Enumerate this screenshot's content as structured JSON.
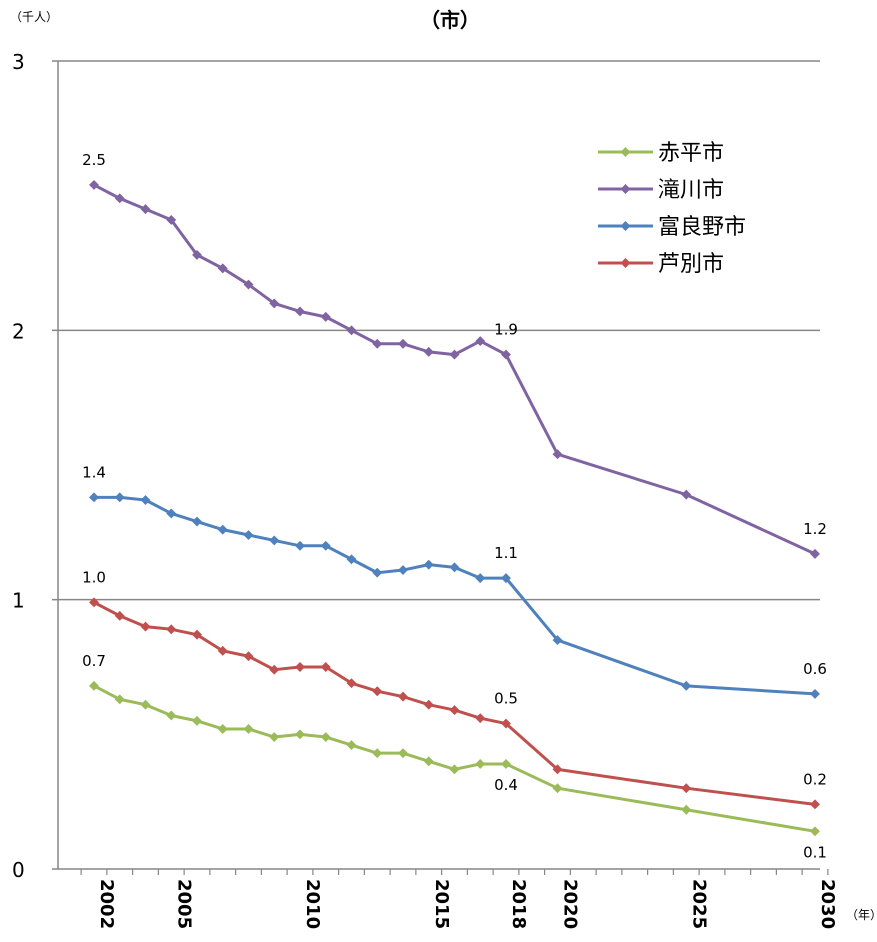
{
  "chart_data": {
    "type": "line",
    "title": "（市）",
    "ylabel": "（千人）",
    "xlabel": "（年）",
    "ylim": [
      0,
      3
    ],
    "yticks": [
      "0",
      "1",
      "2",
      "3"
    ],
    "x": [
      2002,
      2003,
      2004,
      2005,
      2006,
      2007,
      2008,
      2009,
      2010,
      2011,
      2012,
      2013,
      2014,
      2015,
      2016,
      2017,
      2018,
      2020,
      2025,
      2030
    ],
    "xtick_labels": [
      "2002",
      "2005",
      "2010",
      "2015",
      "2018",
      "2020",
      "2025",
      "2030"
    ],
    "grid": true,
    "legend_position": "top-right",
    "series": [
      {
        "name": "赤平市",
        "color": "#9bbb59",
        "values": [
          0.68,
          0.63,
          0.61,
          0.57,
          0.55,
          0.52,
          0.52,
          0.49,
          0.5,
          0.49,
          0.46,
          0.43,
          0.43,
          0.4,
          0.37,
          0.39,
          0.39,
          0.3,
          0.22,
          0.14
        ],
        "labels": [
          {
            "i": 0,
            "text": "0.7",
            "pos": "above"
          },
          {
            "i": 16,
            "text": "0.4",
            "pos": "below"
          },
          {
            "i": 19,
            "text": "0.1",
            "pos": "below"
          }
        ]
      },
      {
        "name": "滝川市",
        "color": "#8064a2",
        "values": [
          2.54,
          2.49,
          2.45,
          2.41,
          2.28,
          2.23,
          2.17,
          2.1,
          2.07,
          2.05,
          2.0,
          1.95,
          1.95,
          1.92,
          1.91,
          1.96,
          1.91,
          1.54,
          1.39,
          1.17
        ],
        "labels": [
          {
            "i": 0,
            "text": "2.5",
            "pos": "above"
          },
          {
            "i": 16,
            "text": "1.9",
            "pos": "above"
          },
          {
            "i": 19,
            "text": "1.2",
            "pos": "above"
          }
        ]
      },
      {
        "name": "富良野市",
        "color": "#4f81bd",
        "values": [
          1.38,
          1.38,
          1.37,
          1.32,
          1.29,
          1.26,
          1.24,
          1.22,
          1.2,
          1.2,
          1.15,
          1.1,
          1.11,
          1.13,
          1.12,
          1.08,
          1.08,
          0.85,
          0.68,
          0.65
        ],
        "labels": [
          {
            "i": 0,
            "text": "1.4",
            "pos": "above"
          },
          {
            "i": 16,
            "text": "1.1",
            "pos": "above"
          },
          {
            "i": 19,
            "text": "0.6",
            "pos": "above"
          }
        ]
      },
      {
        "name": "芦別市",
        "color": "#c0504d",
        "values": [
          0.99,
          0.94,
          0.9,
          0.89,
          0.87,
          0.81,
          0.79,
          0.74,
          0.75,
          0.75,
          0.69,
          0.66,
          0.64,
          0.61,
          0.59,
          0.56,
          0.54,
          0.37,
          0.3,
          0.24
        ],
        "labels": [
          {
            "i": 0,
            "text": "1.0",
            "pos": "above"
          },
          {
            "i": 16,
            "text": "0.5",
            "pos": "above"
          },
          {
            "i": 19,
            "text": "0.2",
            "pos": "above"
          }
        ]
      }
    ]
  }
}
